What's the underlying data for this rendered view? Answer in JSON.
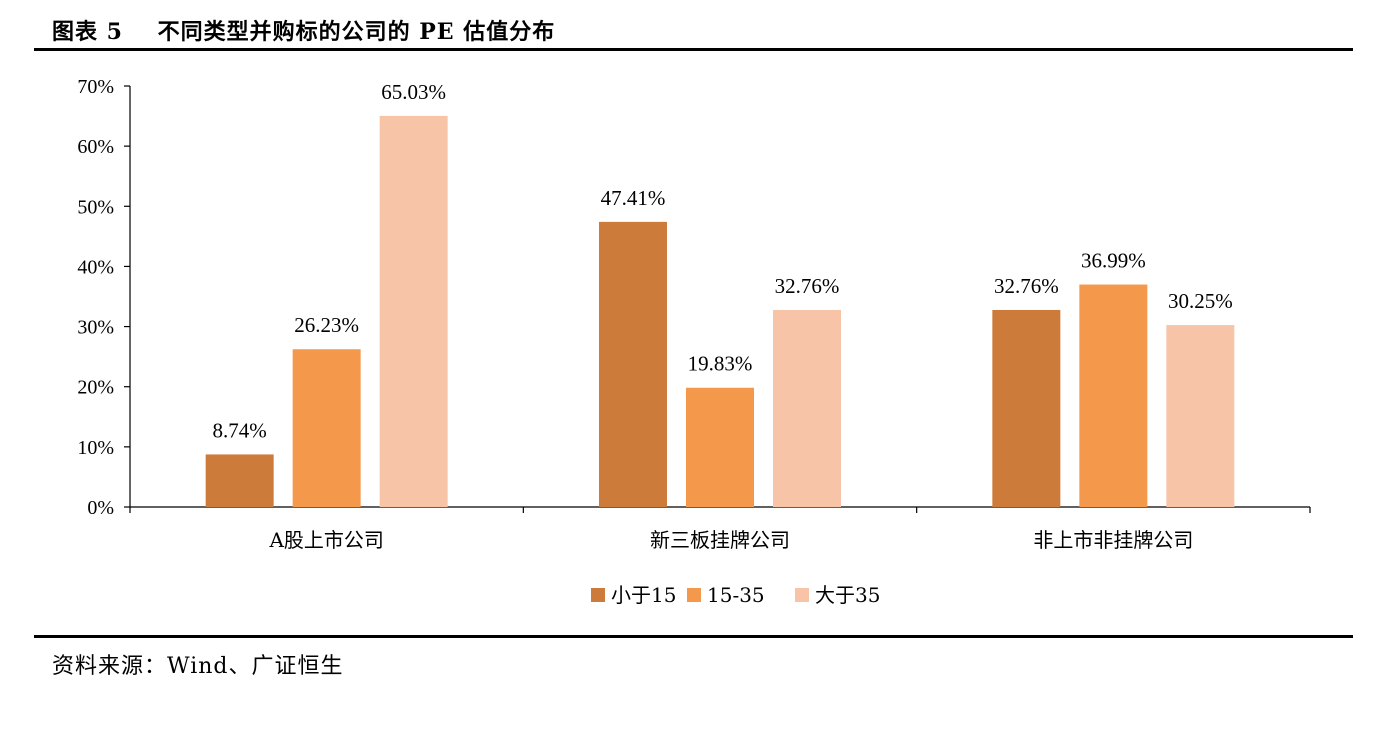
{
  "header": {
    "figure_title": "图表 5    不同类型并购标的公司的 PE 估值分布"
  },
  "footer": {
    "source": "资料来源：Wind、广证恒生"
  },
  "chart_data": {
    "type": "bar",
    "categories": [
      "A股上市公司",
      "新三板挂牌公司",
      "非上市非挂牌公司"
    ],
    "series": [
      {
        "name": "小于15",
        "color": "#CD7B3A",
        "values": [
          8.74,
          47.41,
          32.76
        ],
        "labels": [
          "8.74%",
          "47.41%",
          "32.76%"
        ]
      },
      {
        "name": "15-35",
        "color": "#F4994B",
        "values": [
          26.23,
          19.83,
          36.99
        ],
        "labels": [
          "26.23%",
          "19.83%",
          "36.99%"
        ]
      },
      {
        "name": "大于35",
        "color": "#F8C4A8",
        "values": [
          65.03,
          32.76,
          30.25
        ],
        "labels": [
          "65.03%",
          "32.76%",
          "30.25%"
        ]
      }
    ],
    "ylim": [
      0,
      70
    ],
    "yticks": [
      0,
      10,
      20,
      30,
      40,
      50,
      60,
      70
    ],
    "ytick_labels": [
      "0%",
      "10%",
      "20%",
      "30%",
      "40%",
      "50%",
      "60%",
      "70%"
    ],
    "grid": false,
    "legend_position": "bottom-center"
  }
}
